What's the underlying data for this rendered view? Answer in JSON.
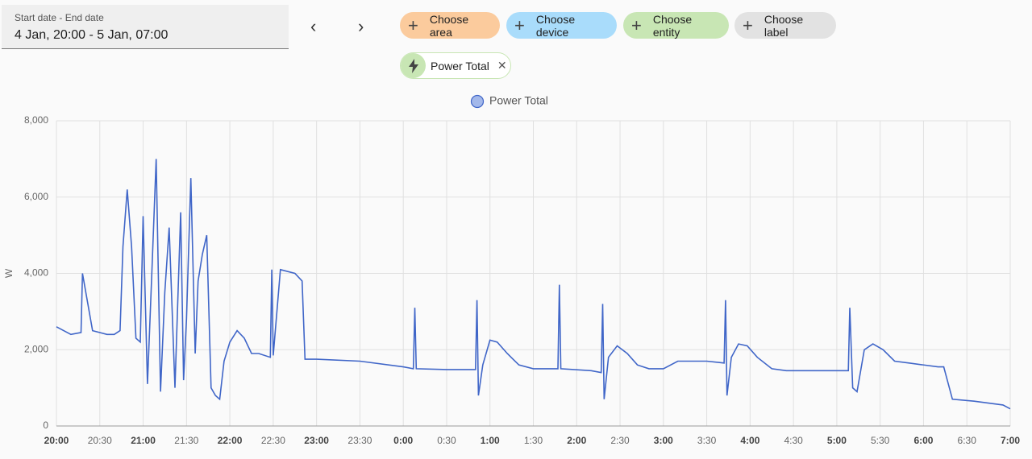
{
  "picker": {
    "label": "Start date - End date",
    "value": "4 Jan, 20:00 - 5 Jan, 07:00"
  },
  "chips": [
    {
      "text": "Choose area",
      "color": "#fbcb9d"
    },
    {
      "text": "Choose device",
      "color": "#a9dcfb"
    },
    {
      "text": "Choose entity",
      "color": "#c8e6b4"
    },
    {
      "text": "Choose label",
      "color": "#e2e2e2"
    }
  ],
  "selected": {
    "text": "Power Total"
  },
  "chart_data": {
    "type": "line",
    "ylabel": "W",
    "xlim": [
      "20:00",
      "7:00"
    ],
    "xticks": [
      "20:00",
      "20:30",
      "21:00",
      "21:30",
      "22:00",
      "22:30",
      "23:00",
      "23:30",
      "0:00",
      "0:30",
      "1:00",
      "1:30",
      "2:00",
      "2:30",
      "3:00",
      "3:30",
      "4:00",
      "4:30",
      "5:00",
      "5:30",
      "6:00",
      "6:30",
      "7:00"
    ],
    "ylim": [
      0,
      8000
    ],
    "yticks": [
      0,
      {
        "value": 2000,
        "label": "2,000"
      },
      {
        "value": 4000,
        "label": "4,000"
      },
      {
        "value": 6000,
        "label": "6,000"
      },
      {
        "value": 8000,
        "label": "8,000"
      }
    ],
    "grid": true,
    "series": [
      {
        "name": "Power Total",
        "color": "#4066c8",
        "x": [
          "20:00",
          "20:10",
          "20:17",
          "20:18",
          "20:25",
          "20:35",
          "20:40",
          "20:44",
          "20:46",
          "20:49",
          "20:52",
          "20:55",
          "20:58",
          "21:00",
          "21:03",
          "21:06",
          "21:09",
          "21:12",
          "21:15",
          "21:18",
          "21:22",
          "21:26",
          "21:28",
          "21:30",
          "21:33",
          "21:36",
          "21:38",
          "21:41",
          "21:44",
          "21:47",
          "21:50",
          "21:53",
          "21:56",
          "22:00",
          "22:05",
          "22:10",
          "22:15",
          "22:20",
          "22:28",
          "22:29",
          "22:30",
          "22:35",
          "22:45",
          "22:50",
          "22:52",
          "23:00",
          "23:30",
          "0:00",
          "0:07",
          "0:08",
          "0:09",
          "0:30",
          "0:50",
          "0:51",
          "0:52",
          "0:55",
          "1:00",
          "1:05",
          "1:12",
          "1:20",
          "1:30",
          "1:47",
          "1:48",
          "1:49",
          "2:10",
          "2:17",
          "2:18",
          "2:19",
          "2:22",
          "2:28",
          "2:35",
          "2:42",
          "2:50",
          "3:00",
          "3:10",
          "3:30",
          "3:42",
          "3:43",
          "3:44",
          "3:47",
          "3:52",
          "3:58",
          "4:05",
          "4:15",
          "4:25",
          "5:00",
          "5:08",
          "5:09",
          "5:11",
          "5:14",
          "5:19",
          "5:25",
          "5:32",
          "5:40",
          "5:50",
          "6:10",
          "6:14",
          "6:20",
          "6:35",
          "6:45",
          "6:55",
          "7:00"
        ],
        "values": [
          2600,
          2400,
          2450,
          4000,
          2500,
          2400,
          2400,
          2500,
          4700,
          6200,
          4700,
          2300,
          2200,
          5500,
          1100,
          4000,
          7000,
          900,
          3500,
          5200,
          1000,
          5600,
          1200,
          2800,
          6500,
          1900,
          3800,
          4500,
          5000,
          1000,
          800,
          700,
          1700,
          2200,
          2500,
          2300,
          1900,
          1900,
          1800,
          4100,
          1850,
          4100,
          4000,
          3800,
          1750,
          1750,
          1700,
          1550,
          1500,
          3100,
          1500,
          1480,
          1480,
          3300,
          800,
          1600,
          2250,
          2200,
          1900,
          1600,
          1500,
          1500,
          3700,
          1500,
          1450,
          1400,
          3200,
          700,
          1800,
          2100,
          1900,
          1600,
          1500,
          1500,
          1700,
          1700,
          1650,
          3300,
          800,
          1800,
          2150,
          2100,
          1800,
          1500,
          1450,
          1450,
          1450,
          3100,
          1000,
          900,
          2000,
          2150,
          2000,
          1700,
          1650,
          1550,
          1550,
          700,
          650,
          600,
          550,
          450
        ]
      }
    ]
  }
}
